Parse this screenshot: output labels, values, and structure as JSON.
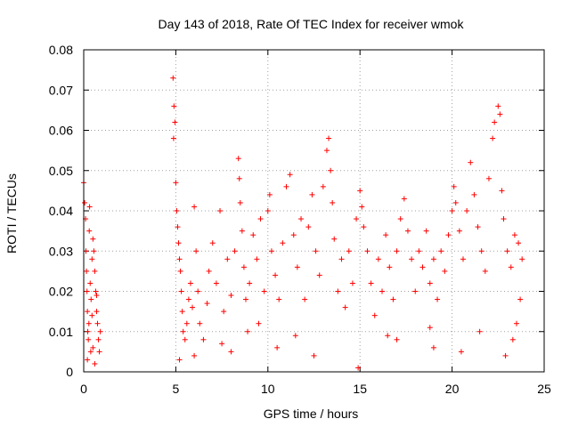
{
  "chart_data": {
    "type": "scatter",
    "title": "Day 143 of 2018, Rate Of TEC Index for receiver wmok",
    "xlabel": "GPS time / hours",
    "ylabel": "ROTI / TECUs",
    "xlim": [
      0,
      25
    ],
    "ylim": [
      0,
      0.08
    ],
    "xticks": [
      "0",
      "5",
      "10",
      "15",
      "20",
      "25"
    ],
    "yticks": [
      "0",
      "0.01",
      "0.02",
      "0.03",
      "0.04",
      "0.05",
      "0.06",
      "0.07",
      "0.08"
    ],
    "grid": true,
    "marker": "plus",
    "series_color": "#ff0000",
    "series": [
      {
        "points": [
          [
            0.0,
            0.047
          ],
          [
            0.05,
            0.042
          ],
          [
            0.1,
            0.038
          ],
          [
            0.12,
            0.03
          ],
          [
            0.15,
            0.025
          ],
          [
            0.18,
            0.02
          ],
          [
            0.2,
            0.015
          ],
          [
            0.22,
            0.01
          ],
          [
            0.25,
            0.008
          ],
          [
            0.28,
            0.012
          ],
          [
            0.3,
            0.035
          ],
          [
            0.32,
            0.041
          ],
          [
            0.35,
            0.022
          ],
          [
            0.38,
            0.005
          ],
          [
            0.4,
            0.018
          ],
          [
            0.45,
            0.028
          ],
          [
            0.5,
            0.033
          ],
          [
            0.55,
            0.03
          ],
          [
            0.6,
            0.025
          ],
          [
            0.65,
            0.02
          ],
          [
            0.7,
            0.015
          ],
          [
            0.75,
            0.012
          ],
          [
            0.8,
            0.008
          ],
          [
            0.85,
            0.005
          ],
          [
            0.9,
            0.01
          ],
          [
            0.6,
            0.002
          ],
          [
            0.5,
            0.006
          ],
          [
            0.2,
            0.003
          ],
          [
            0.7,
            0.019
          ],
          [
            0.45,
            0.014
          ],
          [
            4.85,
            0.073
          ],
          [
            4.9,
            0.066
          ],
          [
            4.95,
            0.062
          ],
          [
            4.88,
            0.058
          ],
          [
            5.0,
            0.047
          ],
          [
            5.05,
            0.04
          ],
          [
            5.1,
            0.036
          ],
          [
            5.15,
            0.032
          ],
          [
            5.2,
            0.028
          ],
          [
            5.25,
            0.025
          ],
          [
            5.3,
            0.02
          ],
          [
            5.35,
            0.015
          ],
          [
            5.4,
            0.01
          ],
          [
            5.5,
            0.008
          ],
          [
            5.6,
            0.012
          ],
          [
            5.7,
            0.018
          ],
          [
            5.8,
            0.022
          ],
          [
            5.9,
            0.016
          ],
          [
            6.0,
            0.041
          ],
          [
            6.1,
            0.03
          ],
          [
            6.2,
            0.02
          ],
          [
            6.3,
            0.012
          ],
          [
            6.5,
            0.008
          ],
          [
            6.7,
            0.017
          ],
          [
            6.8,
            0.025
          ],
          [
            7.0,
            0.032
          ],
          [
            7.2,
            0.022
          ],
          [
            7.4,
            0.04
          ],
          [
            7.6,
            0.015
          ],
          [
            7.8,
            0.028
          ],
          [
            8.0,
            0.019
          ],
          [
            8.2,
            0.03
          ],
          [
            8.4,
            0.053
          ],
          [
            8.45,
            0.048
          ],
          [
            8.5,
            0.042
          ],
          [
            8.6,
            0.035
          ],
          [
            8.7,
            0.026
          ],
          [
            8.8,
            0.018
          ],
          [
            8.9,
            0.01
          ],
          [
            9.0,
            0.022
          ],
          [
            9.2,
            0.034
          ],
          [
            9.4,
            0.028
          ],
          [
            9.6,
            0.038
          ],
          [
            9.8,
            0.02
          ],
          [
            10.0,
            0.04
          ],
          [
            10.1,
            0.044
          ],
          [
            10.2,
            0.03
          ],
          [
            10.4,
            0.024
          ],
          [
            10.6,
            0.018
          ],
          [
            10.8,
            0.032
          ],
          [
            11.0,
            0.046
          ],
          [
            11.2,
            0.049
          ],
          [
            11.4,
            0.034
          ],
          [
            11.6,
            0.026
          ],
          [
            11.8,
            0.038
          ],
          [
            12.0,
            0.018
          ],
          [
            12.2,
            0.036
          ],
          [
            12.4,
            0.044
          ],
          [
            12.6,
            0.03
          ],
          [
            12.8,
            0.024
          ],
          [
            13.0,
            0.046
          ],
          [
            13.2,
            0.055
          ],
          [
            13.3,
            0.058
          ],
          [
            13.4,
            0.05
          ],
          [
            13.5,
            0.042
          ],
          [
            13.6,
            0.033
          ],
          [
            13.8,
            0.02
          ],
          [
            14.0,
            0.028
          ],
          [
            14.2,
            0.016
          ],
          [
            14.4,
            0.03
          ],
          [
            14.6,
            0.022
          ],
          [
            14.8,
            0.038
          ],
          [
            15.0,
            0.045
          ],
          [
            15.1,
            0.041
          ],
          [
            15.2,
            0.036
          ],
          [
            15.4,
            0.03
          ],
          [
            15.6,
            0.022
          ],
          [
            15.8,
            0.014
          ],
          [
            16.0,
            0.028
          ],
          [
            16.2,
            0.02
          ],
          [
            16.4,
            0.034
          ],
          [
            16.6,
            0.026
          ],
          [
            16.8,
            0.018
          ],
          [
            17.0,
            0.03
          ],
          [
            17.2,
            0.038
          ],
          [
            17.4,
            0.043
          ],
          [
            17.6,
            0.035
          ],
          [
            17.8,
            0.028
          ],
          [
            18.0,
            0.02
          ],
          [
            18.2,
            0.03
          ],
          [
            18.4,
            0.026
          ],
          [
            18.6,
            0.035
          ],
          [
            18.8,
            0.022
          ],
          [
            19.0,
            0.028
          ],
          [
            19.2,
            0.018
          ],
          [
            19.4,
            0.03
          ],
          [
            19.6,
            0.025
          ],
          [
            19.8,
            0.034
          ],
          [
            20.0,
            0.04
          ],
          [
            20.1,
            0.046
          ],
          [
            20.2,
            0.042
          ],
          [
            20.4,
            0.035
          ],
          [
            20.6,
            0.028
          ],
          [
            20.8,
            0.04
          ],
          [
            21.0,
            0.052
          ],
          [
            21.2,
            0.044
          ],
          [
            21.4,
            0.036
          ],
          [
            21.6,
            0.03
          ],
          [
            21.8,
            0.025
          ],
          [
            22.0,
            0.048
          ],
          [
            22.2,
            0.058
          ],
          [
            22.3,
            0.062
          ],
          [
            22.5,
            0.066
          ],
          [
            22.6,
            0.064
          ],
          [
            22.7,
            0.045
          ],
          [
            22.8,
            0.038
          ],
          [
            23.0,
            0.03
          ],
          [
            23.2,
            0.026
          ],
          [
            23.4,
            0.034
          ],
          [
            23.6,
            0.032
          ],
          [
            23.8,
            0.028
          ],
          [
            23.7,
            0.018
          ],
          [
            23.5,
            0.012
          ],
          [
            23.3,
            0.008
          ],
          [
            21.5,
            0.01
          ],
          [
            19.0,
            0.006
          ],
          [
            17.0,
            0.008
          ],
          [
            12.5,
            0.004
          ],
          [
            10.5,
            0.006
          ],
          [
            8.0,
            0.005
          ],
          [
            6.0,
            0.004
          ],
          [
            5.2,
            0.003
          ],
          [
            14.9,
            0.001
          ],
          [
            7.5,
            0.007
          ],
          [
            16.5,
            0.009
          ],
          [
            18.8,
            0.011
          ],
          [
            20.5,
            0.005
          ],
          [
            22.9,
            0.004
          ],
          [
            9.5,
            0.012
          ],
          [
            11.5,
            0.009
          ]
        ]
      }
    ]
  }
}
